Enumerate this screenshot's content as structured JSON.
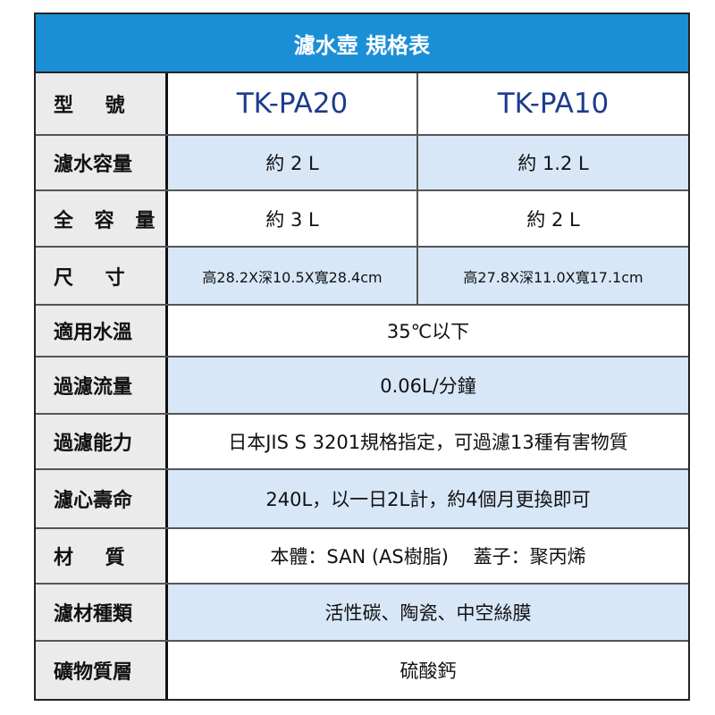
{
  "title": "濾水壺 規格表",
  "colors": {
    "header": "#1b8fd6",
    "row_alt": "#d7e7f8",
    "label_bg": "#ebebeb",
    "model_text": "#1c3c8c"
  },
  "rows": [
    {
      "label": "型 號",
      "v1": "TK-PA20",
      "v2": "TK-PA10"
    },
    {
      "label": "濾水容量",
      "v1": "約 2 L",
      "v2": "約 1.2 L"
    },
    {
      "label": "全 容 量",
      "v1": "約 3 L",
      "v2": "約 2 L"
    },
    {
      "label": "尺 寸",
      "v1": "高28.2X深10.5X寬28.4cm",
      "v2": "高27.8X深11.0X寬17.1cm"
    },
    {
      "label": "適用水溫",
      "value": "35℃以下"
    },
    {
      "label": "過濾流量",
      "value": "0.06L/分鐘"
    },
    {
      "label": "過濾能力",
      "value": "日本JIS S 3201規格指定，可過濾13種有害物質"
    },
    {
      "label": "濾心壽命",
      "value": "240L，以一日2L計，約4個月更換即可"
    },
    {
      "label": "材 質",
      "value": "本體：SAN (AS樹脂)　 蓋子：聚丙烯"
    },
    {
      "label": "濾材種類",
      "value": "活性碳、陶瓷、中空絲膜"
    },
    {
      "label": "礦物質層",
      "value": "硫酸鈣"
    }
  ]
}
